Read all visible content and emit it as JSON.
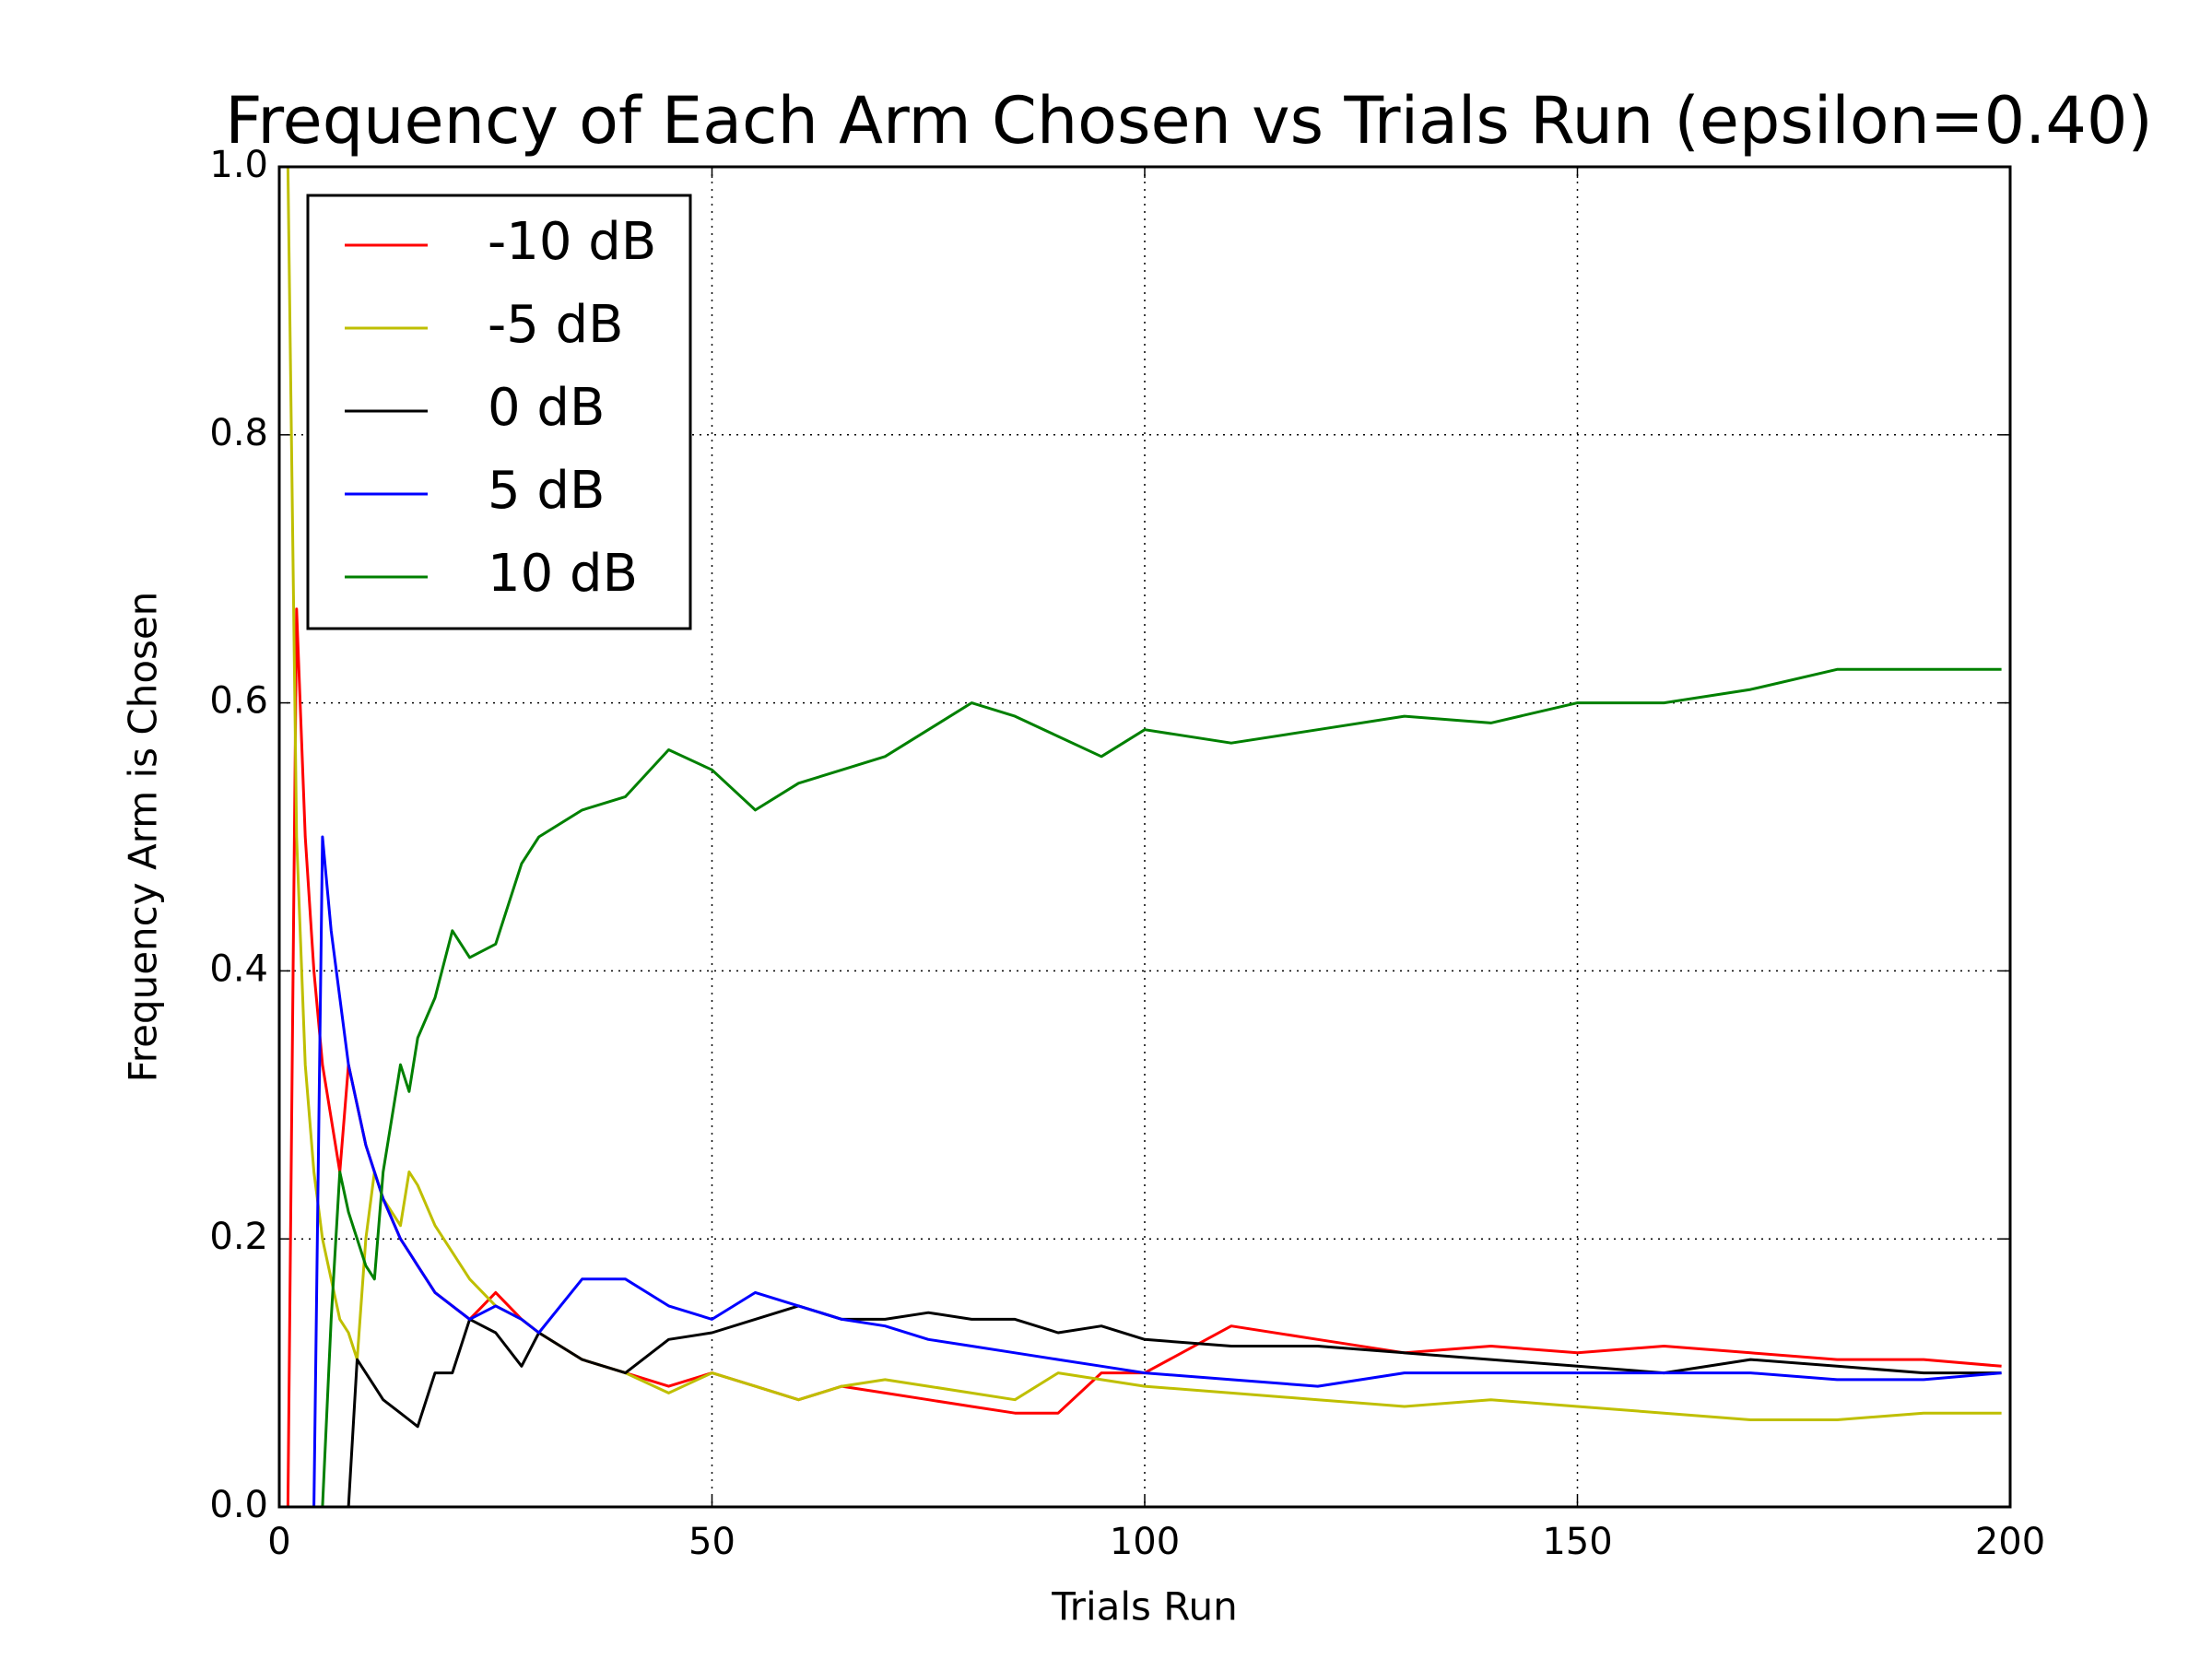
{
  "chart_data": {
    "type": "line",
    "title": "Frequency of Each Arm Chosen vs Trials Run (epsilon=0.40)",
    "x_label": "Trials Run",
    "y_label": "Frequency Arm is Chosen",
    "x": [
      1,
      2,
      3,
      4,
      5,
      6,
      7,
      8,
      9,
      10,
      11,
      12,
      14,
      15,
      16,
      18,
      20,
      22,
      25,
      28,
      30,
      35,
      40,
      45,
      50,
      55,
      60,
      65,
      70,
      75,
      80,
      85,
      90,
      95,
      100,
      110,
      120,
      130,
      140,
      150,
      160,
      170,
      180,
      190,
      199
    ],
    "series": [
      {
        "name": "-10 dB",
        "color": "#ff0000",
        "values": [
          0,
          0.67,
          0.5,
          0.4,
          0.33,
          0.29,
          0.25,
          0.33,
          0.3,
          0.27,
          0.25,
          0.23,
          0.2,
          0.19,
          0.18,
          0.16,
          0.15,
          0.14,
          0.16,
          0.14,
          0.13,
          0.11,
          0.1,
          0.09,
          0.1,
          0.09,
          0.08,
          0.09,
          0.085,
          0.08,
          0.075,
          0.07,
          0.07,
          0.1,
          0.1,
          0.135,
          0.125,
          0.115,
          0.12,
          0.115,
          0.12,
          0.115,
          0.11,
          0.11,
          0.105
        ]
      },
      {
        "name": "-5 dB",
        "color": "#bfbf00",
        "values": [
          1,
          0.5,
          0.33,
          0.25,
          0.2,
          0.17,
          0.14,
          0.13,
          0.11,
          0.2,
          0.25,
          0.23,
          0.21,
          0.25,
          0.24,
          0.21,
          0.19,
          0.17,
          0.15,
          0.14,
          0.13,
          0.11,
          0.1,
          0.085,
          0.1,
          0.09,
          0.08,
          0.09,
          0.095,
          0.09,
          0.085,
          0.08,
          0.1,
          0.095,
          0.09,
          0.085,
          0.08,
          0.075,
          0.08,
          0.075,
          0.07,
          0.065,
          0.065,
          0.07,
          0.07
        ]
      },
      {
        "name": "0 dB",
        "color": "#000000",
        "values": [
          0,
          0,
          0,
          0,
          0,
          0,
          0,
          0,
          0.11,
          0.1,
          0.09,
          0.08,
          0.07,
          0.065,
          0.06,
          0.1,
          0.1,
          0.14,
          0.13,
          0.105,
          0.13,
          0.11,
          0.1,
          0.125,
          0.13,
          0.14,
          0.15,
          0.14,
          0.14,
          0.145,
          0.14,
          0.14,
          0.13,
          0.135,
          0.125,
          0.12,
          0.12,
          0.115,
          0.11,
          0.105,
          0.1,
          0.11,
          0.105,
          0.1,
          0.1
        ]
      },
      {
        "name": "5 dB",
        "color": "#0000ff",
        "values": [
          0,
          0,
          0,
          0,
          0.5,
          0.43,
          0.38,
          0.33,
          0.3,
          0.27,
          0.25,
          0.23,
          0.2,
          0.19,
          0.18,
          0.16,
          0.15,
          0.14,
          0.15,
          0.14,
          0.13,
          0.17,
          0.17,
          0.15,
          0.14,
          0.16,
          0.15,
          0.14,
          0.135,
          0.125,
          0.12,
          0.115,
          0.11,
          0.105,
          0.1,
          0.095,
          0.09,
          0.1,
          0.1,
          0.1,
          0.1,
          0.1,
          0.095,
          0.095,
          0.1
        ]
      },
      {
        "name": "10 dB",
        "color": "#008000",
        "values": [
          0,
          0,
          0,
          0,
          0,
          0.14,
          0.25,
          0.22,
          0.2,
          0.18,
          0.17,
          0.25,
          0.33,
          0.31,
          0.35,
          0.38,
          0.43,
          0.41,
          0.42,
          0.48,
          0.5,
          0.52,
          0.53,
          0.565,
          0.55,
          0.52,
          0.54,
          0.55,
          0.56,
          0.58,
          0.6,
          0.59,
          0.575,
          0.56,
          0.58,
          0.57,
          0.58,
          0.59,
          0.585,
          0.6,
          0.6,
          0.61,
          0.625,
          0.625,
          0.625
        ]
      }
    ],
    "xlim": [
      0,
      200
    ],
    "ylim": [
      0,
      1
    ],
    "xticks": [
      0,
      50,
      100,
      150,
      200
    ],
    "yticks": [
      {
        "value": 0,
        "label": "0.0"
      },
      0.2,
      0.4,
      0.6,
      0.8,
      {
        "value": 1,
        "label": "1.0"
      }
    ],
    "grid": true,
    "legend_loc": "upper left"
  }
}
